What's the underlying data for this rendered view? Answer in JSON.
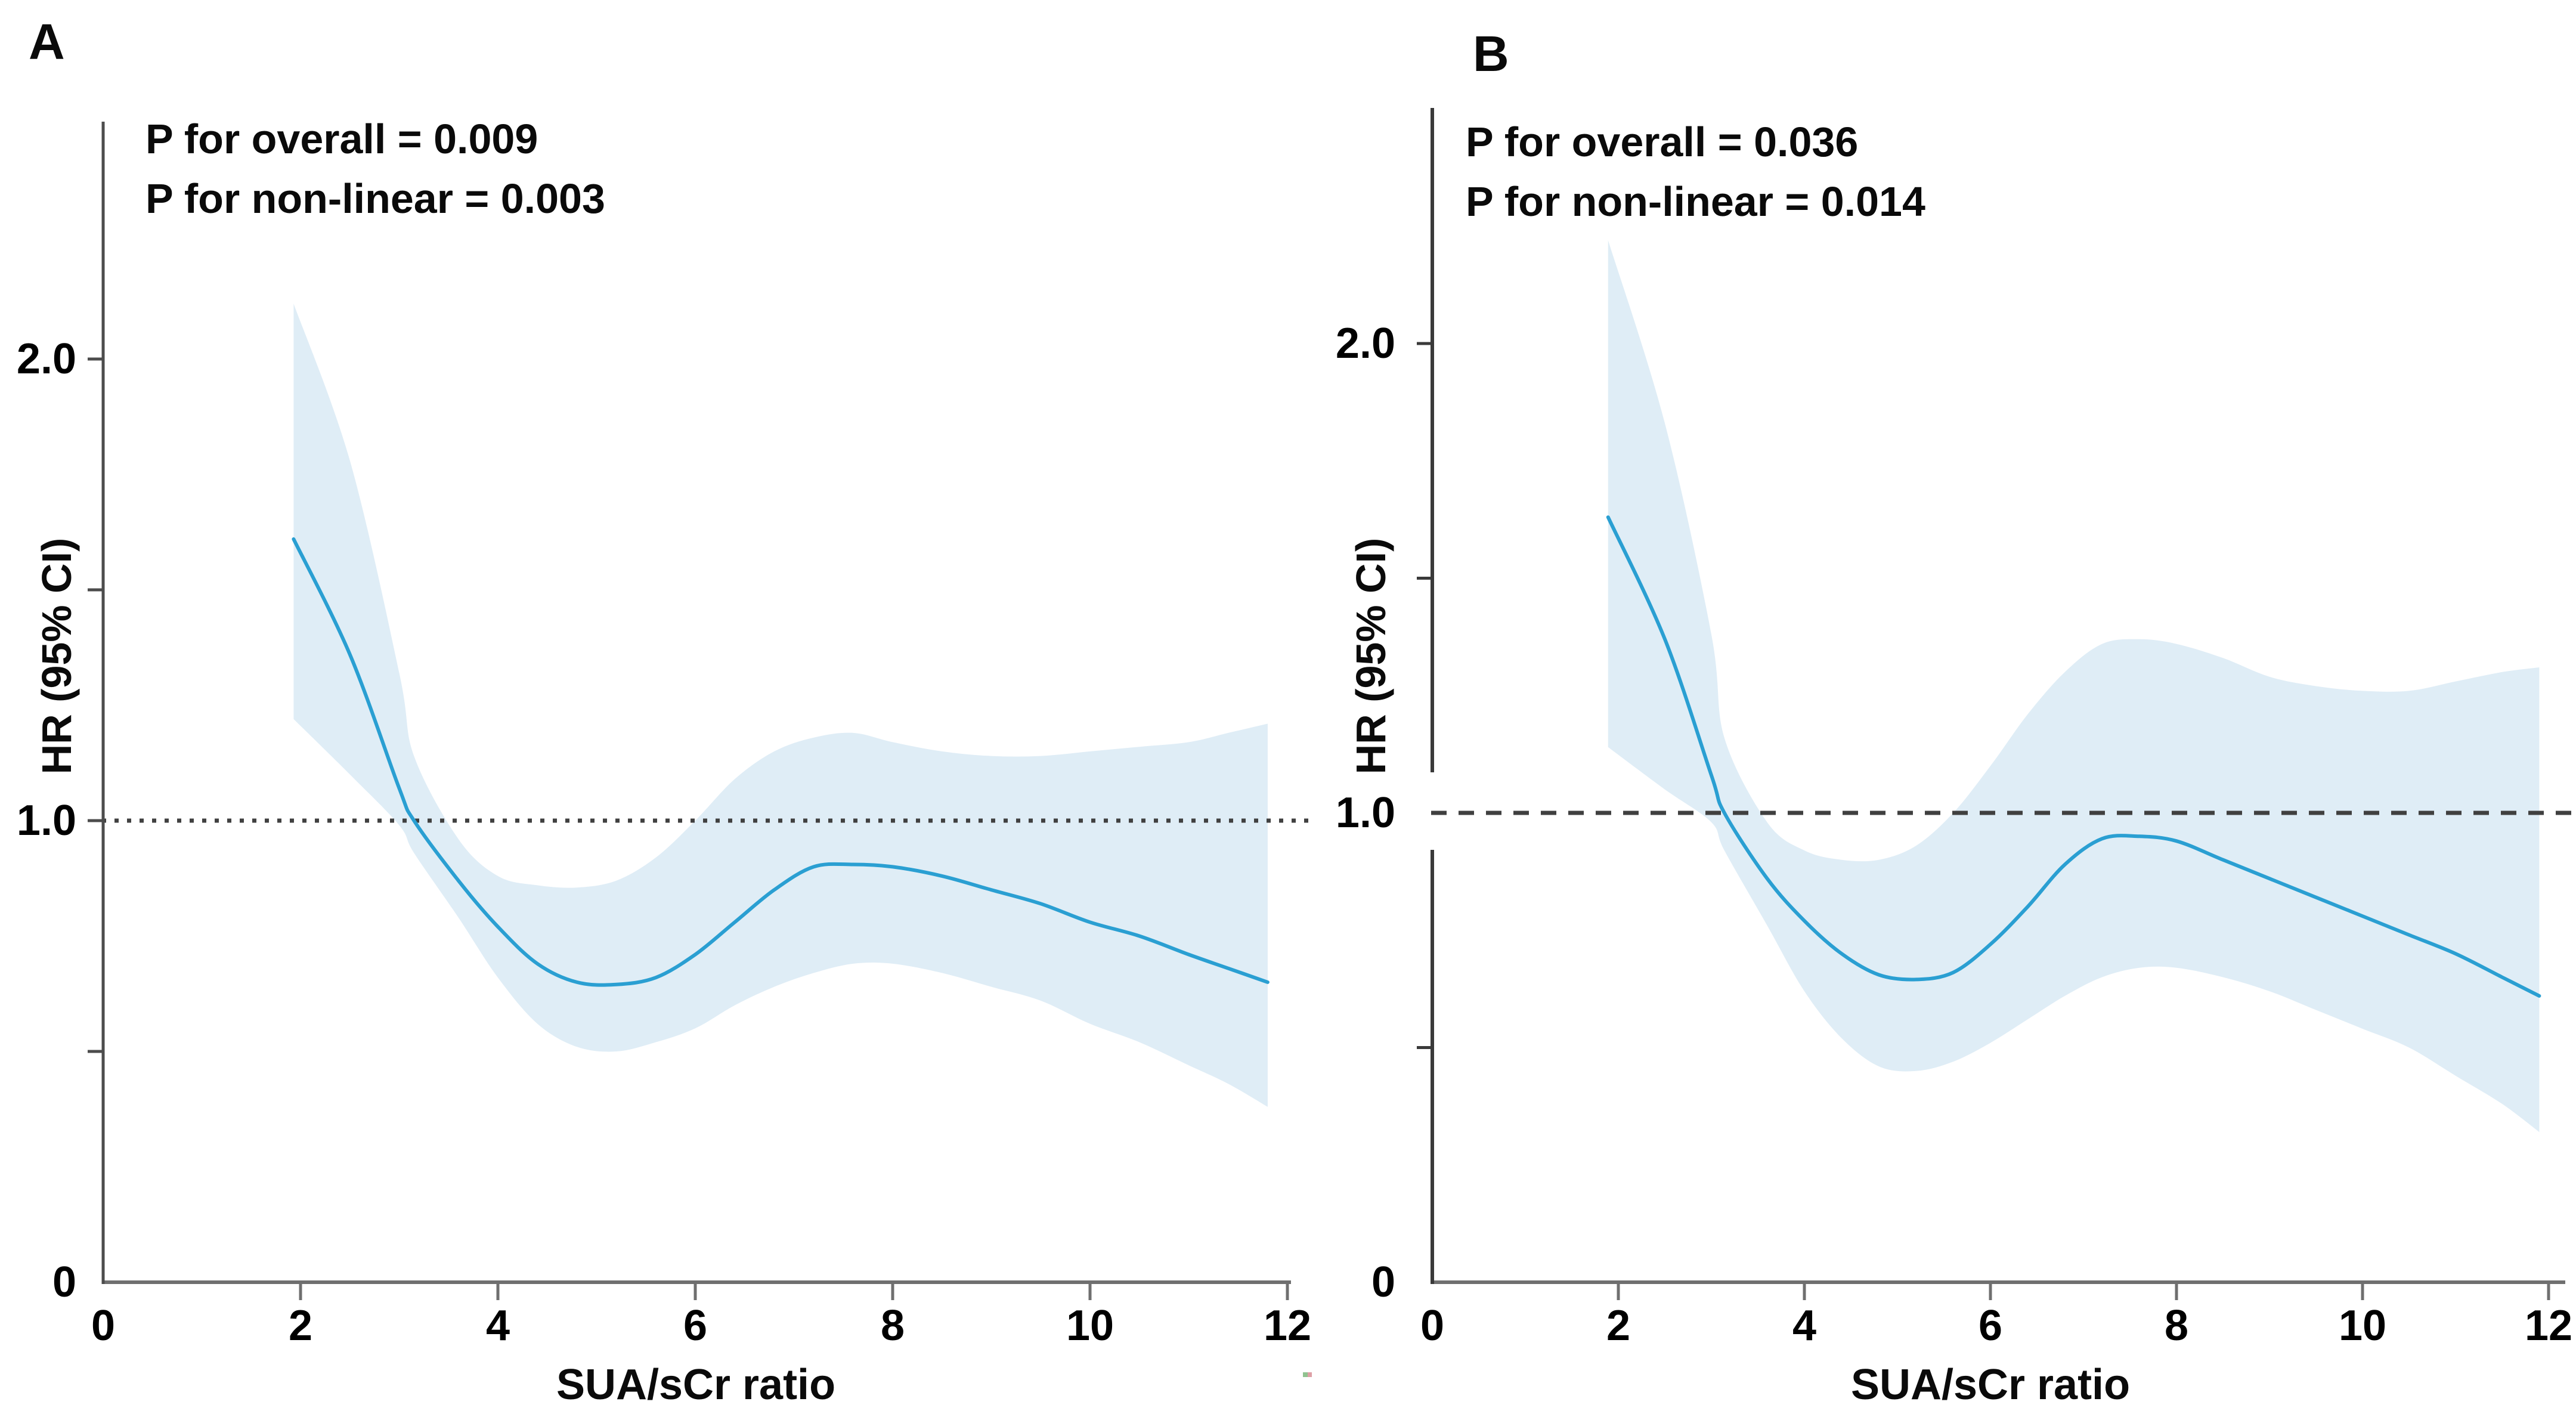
{
  "figure": {
    "description": "Two-panel restricted cubic spline plot of hazard ratio versus SUA/sCr ratio with 95% confidence bands",
    "panels": [
      {
        "label": "A",
        "annotations": {
          "p_overall": "P for overall = 0.009",
          "p_nonlinear": "P for non-linear = 0.003"
        },
        "y_axis": {
          "title": "HR (95% CI)",
          "ticks": [
            {
              "value": 2.0,
              "label": "2.0"
            },
            {
              "value": 1.0,
              "label": "1.0"
            },
            {
              "value": 0,
              "label": "0"
            }
          ],
          "minor_ticks": [
            1.5,
            0.5
          ]
        },
        "x_axis": {
          "title": "SUA/sCr ratio",
          "ticks": [
            {
              "value": 0,
              "label": "0"
            },
            {
              "value": 2,
              "label": "2"
            },
            {
              "value": 4,
              "label": "4"
            },
            {
              "value": 6,
              "label": "6"
            },
            {
              "value": 8,
              "label": "8"
            },
            {
              "value": 10,
              "label": "10"
            },
            {
              "value": 12,
              "label": "12"
            }
          ]
        },
        "reference_line": {
          "value": 1.0,
          "style": "dotted"
        }
      },
      {
        "label": "B",
        "annotations": {
          "p_overall": "P for overall = 0.036",
          "p_nonlinear": "P for non-linear = 0.014"
        },
        "y_axis": {
          "title": "HR (95% CI)",
          "ticks": [
            {
              "value": 2.0,
              "label": "2.0"
            },
            {
              "value": 1.0,
              "label": "1.0"
            },
            {
              "value": 0,
              "label": "0"
            }
          ],
          "minor_ticks": [
            1.5,
            0.5
          ]
        },
        "x_axis": {
          "title": "SUA/sCr ratio",
          "ticks": [
            {
              "value": 0,
              "label": "0"
            },
            {
              "value": 2,
              "label": "2"
            },
            {
              "value": 4,
              "label": "4"
            },
            {
              "value": 6,
              "label": "6"
            },
            {
              "value": 8,
              "label": "8"
            },
            {
              "value": 10,
              "label": "10"
            },
            {
              "value": 12,
              "label": "12"
            }
          ]
        },
        "reference_line": {
          "value": 1.0,
          "style": "dashed"
        }
      }
    ]
  },
  "chart_data": [
    {
      "panel": "A",
      "type": "line",
      "title": "P for overall = 0.009 ; P for non-linear = 0.003",
      "xlabel": "SUA/sCr ratio",
      "ylabel": "HR (95% CI)",
      "xlim": [
        0,
        12
      ],
      "ylim": [
        0,
        2.5
      ],
      "x_tick_values": [
        0,
        2,
        4,
        6,
        8,
        10,
        12
      ],
      "y_tick_values": [
        2.0,
        1.0,
        0
      ],
      "y_minor_tick_values": [
        1.5,
        0.5
      ],
      "reference_line_y": 1.0,
      "reference_line_style": "dotted",
      "x": [
        1.93,
        2.5,
        3.0,
        3.15,
        3.6,
        4.0,
        4.4,
        4.8,
        5.2,
        5.6,
        6.0,
        6.4,
        6.8,
        7.2,
        7.6,
        8.0,
        8.5,
        9.0,
        9.5,
        10.0,
        10.5,
        11.0,
        11.4,
        11.8
      ],
      "hr": [
        1.61,
        1.36,
        1.07,
        1.0,
        0.87,
        0.77,
        0.69,
        0.65,
        0.645,
        0.66,
        0.71,
        0.78,
        0.85,
        0.9,
        0.905,
        0.9,
        0.88,
        0.85,
        0.82,
        0.78,
        0.75,
        0.71,
        0.68,
        0.65
      ],
      "ci_upper": [
        2.12,
        1.78,
        1.32,
        1.14,
        0.96,
        0.88,
        0.86,
        0.855,
        0.87,
        0.92,
        1.0,
        1.09,
        1.15,
        1.18,
        1.19,
        1.17,
        1.15,
        1.14,
        1.14,
        1.15,
        1.16,
        1.17,
        1.19,
        1.21
      ],
      "ci_lower": [
        1.22,
        1.1,
        0.99,
        0.93,
        0.79,
        0.66,
        0.56,
        0.51,
        0.5,
        0.52,
        0.55,
        0.6,
        0.64,
        0.67,
        0.69,
        0.69,
        0.67,
        0.64,
        0.61,
        0.56,
        0.52,
        0.47,
        0.43,
        0.38
      ]
    },
    {
      "panel": "B",
      "type": "line",
      "title": "P for overall = 0.036 ; P for non-linear = 0.014",
      "xlabel": "SUA/sCr ratio",
      "ylabel": "HR (95% CI)",
      "xlim": [
        0,
        12
      ],
      "ylim": [
        0,
        2.5
      ],
      "x_tick_values": [
        0,
        2,
        4,
        6,
        8,
        10,
        12
      ],
      "y_tick_values": [
        2.0,
        1.0,
        0
      ],
      "y_minor_tick_values": [
        1.5,
        0.5
      ],
      "reference_line_y": 1.0,
      "reference_line_style": "dashed",
      "x": [
        1.89,
        2.5,
        3.0,
        3.14,
        3.6,
        4.0,
        4.4,
        4.8,
        5.2,
        5.6,
        6.0,
        6.4,
        6.8,
        7.2,
        7.6,
        8.0,
        8.5,
        9.0,
        9.5,
        10.0,
        10.5,
        11.0,
        11.5,
        11.9
      ],
      "hr": [
        1.63,
        1.37,
        1.08,
        1.0,
        0.86,
        0.77,
        0.7,
        0.655,
        0.645,
        0.66,
        0.72,
        0.8,
        0.89,
        0.945,
        0.95,
        0.94,
        0.9,
        0.86,
        0.82,
        0.78,
        0.74,
        0.7,
        0.65,
        0.61
      ],
      "ci_upper": [
        2.22,
        1.83,
        1.38,
        1.16,
        0.98,
        0.92,
        0.9,
        0.9,
        0.93,
        1.0,
        1.1,
        1.21,
        1.3,
        1.36,
        1.37,
        1.36,
        1.33,
        1.29,
        1.27,
        1.26,
        1.26,
        1.28,
        1.3,
        1.31
      ],
      "ci_lower": [
        1.14,
        1.05,
        0.98,
        0.92,
        0.76,
        0.62,
        0.52,
        0.46,
        0.45,
        0.47,
        0.51,
        0.56,
        0.61,
        0.65,
        0.67,
        0.67,
        0.65,
        0.62,
        0.58,
        0.54,
        0.5,
        0.44,
        0.38,
        0.32
      ]
    }
  ],
  "colors": {
    "curve": "#2a9fd2",
    "confidence_band": "#dfedf6",
    "reference_line": "#404040",
    "axis_a": "#4c4c4c",
    "axis_b": "#3a3a3a",
    "baseline": "#6f6f6f",
    "text": "#000000"
  }
}
